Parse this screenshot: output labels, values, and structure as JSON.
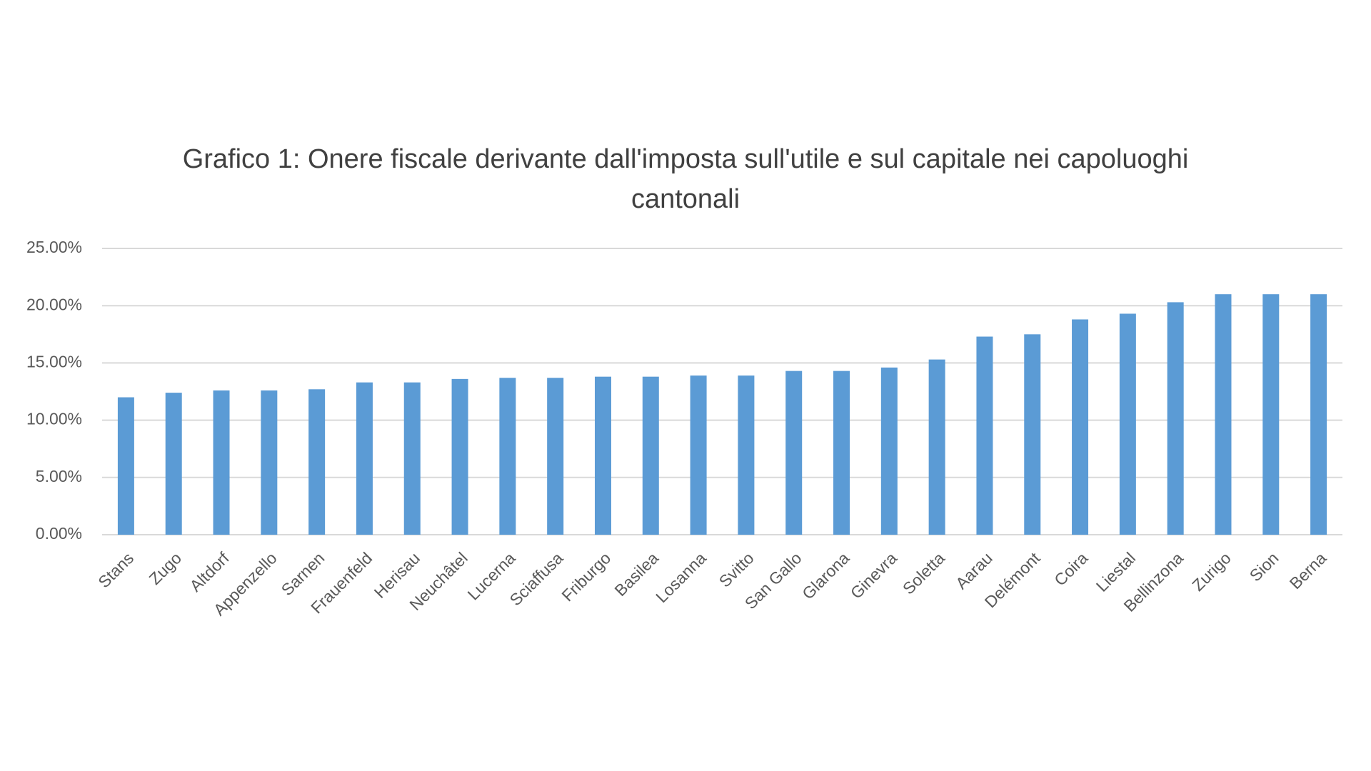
{
  "chart_data": {
    "type": "bar",
    "title": "Grafico 1: Onere fiscale derivante dall'imposta sull'utile e sul capitale nei capoluoghi cantonali",
    "categories": [
      "Stans",
      "Zugo",
      "Altdorf",
      "Appenzello",
      "Sarnen",
      "Frauenfeld",
      "Herisau",
      "Neuchâtel",
      "Lucerna",
      "Sciaffusa",
      "Friburgo",
      "Basilea",
      "Losanna",
      "Svitto",
      "San Gallo",
      "Glarona",
      "Ginevra",
      "Soletta",
      "Aarau",
      "Delémont",
      "Coira",
      "Liestal",
      "Bellinzona",
      "Zurigo",
      "Sion",
      "Berna"
    ],
    "values": [
      12.0,
      12.4,
      12.6,
      12.6,
      12.7,
      13.3,
      13.3,
      13.6,
      13.7,
      13.7,
      13.8,
      13.8,
      13.9,
      13.9,
      14.3,
      14.3,
      14.6,
      15.3,
      17.3,
      17.5,
      18.8,
      19.3,
      20.3,
      21.0,
      21.0,
      21.0
    ],
    "color": "#5b9bd5",
    "ylim": [
      0,
      25
    ],
    "yticks": [
      {
        "value": 0,
        "label": "0.00%"
      },
      {
        "value": 5,
        "label": "5.00%"
      },
      {
        "value": 10,
        "label": "10.00%"
      },
      {
        "value": 15,
        "label": "15.00%"
      },
      {
        "value": 20,
        "label": "20.00%"
      },
      {
        "value": 25,
        "label": "25.00%"
      }
    ],
    "grid": true
  }
}
